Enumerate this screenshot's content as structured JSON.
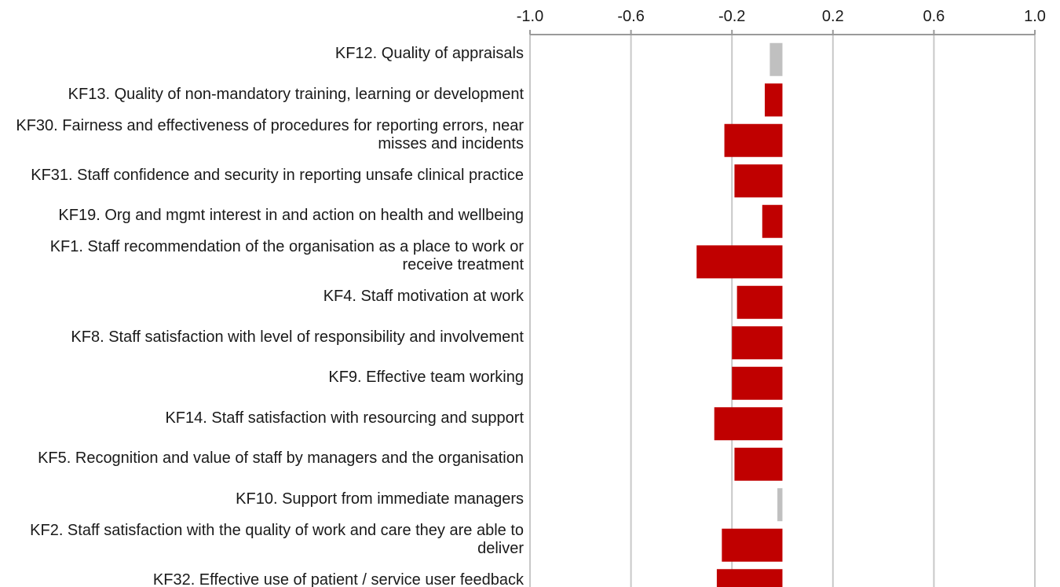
{
  "chart_data": {
    "type": "barh",
    "categories": [
      "KF12. Quality of appraisals",
      "KF13. Quality of non-mandatory training, learning or development",
      "KF30. Fairness and effectiveness of procedures for reporting errors, near misses and incidents",
      "KF31. Staff confidence and security in reporting unsafe clinical practice",
      "KF19. Org and mgmt interest in and action on health and wellbeing",
      "KF1. Staff recommendation of the organisation as a place to work or receive treatment",
      "KF4. Staff motivation at work",
      "KF8. Staff satisfaction with level of responsibility and involvement",
      "KF9. Effective team working",
      "KF14. Staff satisfaction with resourcing and support",
      "KF5. Recognition and value of staff by managers and the organisation",
      "KF10. Support from immediate managers",
      "KF2. Staff satisfaction with the quality of work and care they are able to deliver",
      "KF32. Effective use of patient / service user feedback"
    ],
    "values": [
      -0.05,
      -0.07,
      -0.23,
      -0.19,
      -0.08,
      -0.34,
      -0.18,
      -0.2,
      -0.2,
      -0.27,
      -0.19,
      -0.02,
      -0.24,
      -0.26
    ],
    "colors": [
      "#c0c0c0",
      "#c00000",
      "#c00000",
      "#c00000",
      "#c00000",
      "#c00000",
      "#c00000",
      "#c00000",
      "#c00000",
      "#c00000",
      "#c00000",
      "#c0c0c0",
      "#c00000",
      "#c00000"
    ],
    "xlim": [
      -1,
      1
    ],
    "xticks": [
      {
        "value": -1,
        "label": "-1.0"
      },
      -0.6,
      -0.2,
      0.2,
      0.6,
      {
        "value": 1,
        "label": "1.0"
      }
    ],
    "grid": true
  }
}
